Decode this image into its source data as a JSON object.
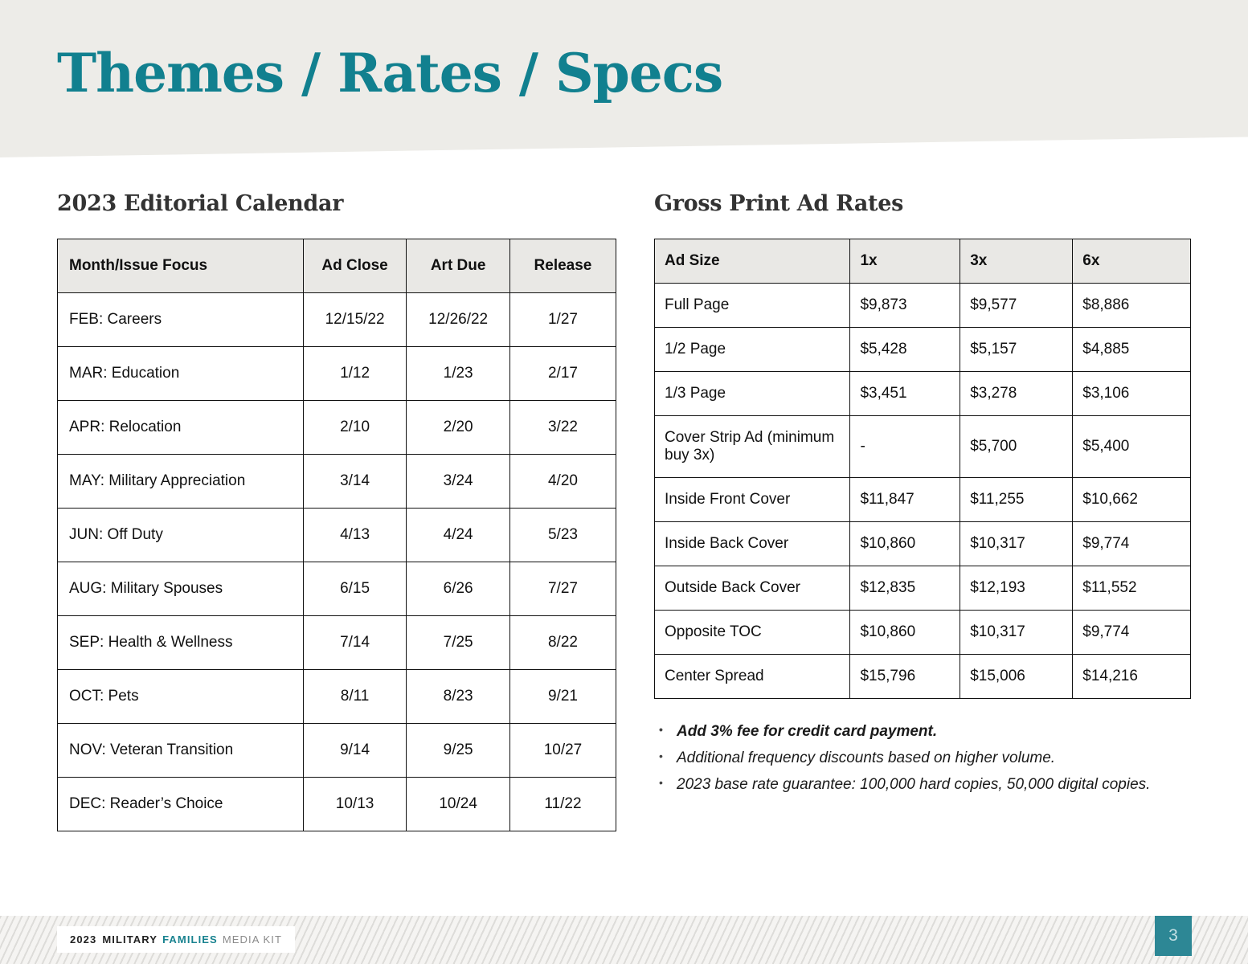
{
  "page": {
    "title": "Themes / Rates / Specs"
  },
  "colors": {
    "accent_teal": "#11808f",
    "footer_teal": "#2d8795",
    "table_header_bg": "#e9e8e5",
    "header_band_bg": "#edece8"
  },
  "editorial_calendar": {
    "heading": "2023 Editorial Calendar",
    "columns": [
      "Month/Issue Focus",
      "Ad Close",
      "Art Due",
      "Release"
    ],
    "rows": [
      [
        "FEB: Careers",
        "12/15/22",
        "12/26/22",
        "1/27"
      ],
      [
        "MAR: Education",
        "1/12",
        "1/23",
        "2/17"
      ],
      [
        "APR: Relocation",
        "2/10",
        "2/20",
        "3/22"
      ],
      [
        "MAY: Military Appreciation",
        "3/14",
        "3/24",
        "4/20"
      ],
      [
        "JUN: Off Duty",
        "4/13",
        "4/24",
        "5/23"
      ],
      [
        "AUG: Military Spouses",
        "6/15",
        "6/26",
        "7/27"
      ],
      [
        "SEP: Health & Wellness",
        "7/14",
        "7/25",
        "8/22"
      ],
      [
        "OCT: Pets",
        "8/11",
        "8/23",
        "9/21"
      ],
      [
        "NOV: Veteran Transition",
        "9/14",
        "9/25",
        "10/27"
      ],
      [
        "DEC: Reader’s Choice",
        "10/13",
        "10/24",
        "11/22"
      ]
    ]
  },
  "ad_rates": {
    "heading": "Gross Print Ad Rates",
    "columns": [
      "Ad Size",
      "1x",
      "3x",
      "6x"
    ],
    "rows": [
      [
        "Full Page",
        "$9,873",
        "$9,577",
        "$8,886"
      ],
      [
        "1/2 Page",
        "$5,428",
        "$5,157",
        "$4,885"
      ],
      [
        "1/3 Page",
        "$3,451",
        "$3,278",
        "$3,106"
      ],
      [
        "Cover Strip Ad (minimum buy 3x)",
        "-",
        "$5,700",
        "$5,400"
      ],
      [
        "Inside Front Cover",
        "$11,847",
        "$11,255",
        "$10,662"
      ],
      [
        "Inside Back Cover",
        "$10,860",
        "$10,317",
        "$9,774"
      ],
      [
        "Outside Back Cover",
        "$12,835",
        "$12,193",
        "$11,552"
      ],
      [
        "Opposite TOC",
        "$10,860",
        "$10,317",
        "$9,774"
      ],
      [
        "Center Spread",
        "$15,796",
        "$15,006",
        "$14,216"
      ]
    ],
    "notes": [
      {
        "text": "Add 3% fee for credit card payment.",
        "bold": true
      },
      {
        "text": "Additional frequency discounts based on higher volume.",
        "bold": false
      },
      {
        "text": "2023 base rate guarantee: 100,000 hard copies, 50,000 digital copies.",
        "bold": false
      }
    ]
  },
  "footer": {
    "year": "2023",
    "brand1": "MILITARY",
    "brand2": "FAMILIES",
    "suffix": "MEDIA KIT",
    "page_number": "3"
  }
}
